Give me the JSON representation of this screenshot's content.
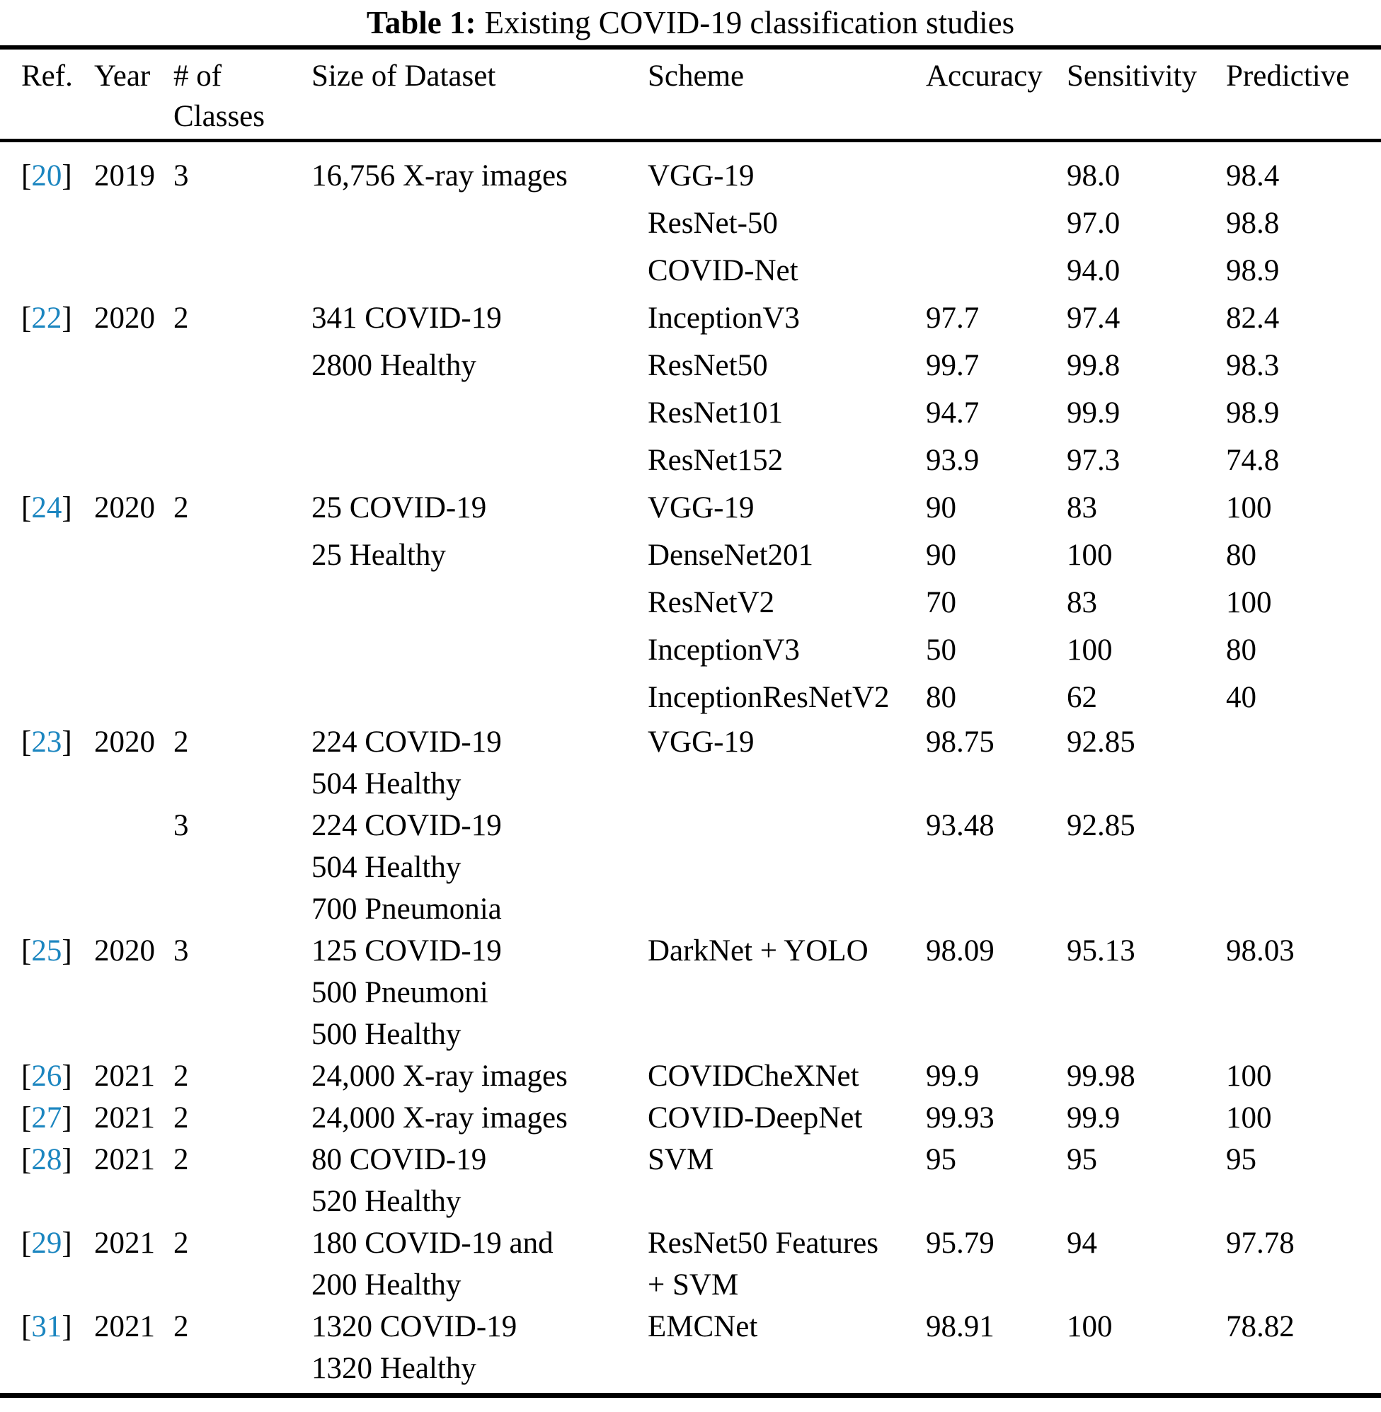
{
  "title": {
    "label": "Table 1:",
    "text": "Existing COVID-19 classification studies"
  },
  "link_color": "#1c86c0",
  "ref_brackets": {
    "open": "[",
    "close": "]"
  },
  "header": {
    "ref": "Ref.",
    "year": "Year",
    "classes_line1": "# of",
    "classes_line2": "Classes",
    "dataset": "Size of Dataset",
    "scheme": "Scheme",
    "accuracy": "Accuracy",
    "sensitivity": "Sensitivity",
    "predictive": "Predictive"
  },
  "lines": [
    {
      "ref": "20",
      "year": "2019",
      "classes": "3",
      "dataset": "16,756 X-ray images",
      "scheme": "VGG-19",
      "accuracy": "",
      "sensitivity": "98.0",
      "predictive": "98.4"
    },
    {
      "ref": "",
      "year": "",
      "classes": "",
      "dataset": "",
      "scheme": "ResNet-50",
      "accuracy": "",
      "sensitivity": "97.0",
      "predictive": "98.8"
    },
    {
      "ref": "",
      "year": "",
      "classes": "",
      "dataset": "",
      "scheme": "COVID-Net",
      "accuracy": "",
      "sensitivity": "94.0",
      "predictive": "98.9"
    },
    {
      "ref": "22",
      "year": "2020",
      "classes": "2",
      "dataset": "341 COVID-19",
      "scheme": "InceptionV3",
      "accuracy": "97.7",
      "sensitivity": "97.4",
      "predictive": "82.4"
    },
    {
      "ref": "",
      "year": "",
      "classes": "",
      "dataset": "2800 Healthy",
      "scheme": "ResNet50",
      "accuracy": "99.7",
      "sensitivity": "99.8",
      "predictive": "98.3"
    },
    {
      "ref": "",
      "year": "",
      "classes": "",
      "dataset": "",
      "scheme": "ResNet101",
      "accuracy": "94.7",
      "sensitivity": "99.9",
      "predictive": "98.9"
    },
    {
      "ref": "",
      "year": "",
      "classes": "",
      "dataset": "",
      "scheme": "ResNet152",
      "accuracy": "93.9",
      "sensitivity": "97.3",
      "predictive": "74.8"
    },
    {
      "ref": "24",
      "year": "2020",
      "classes": "2",
      "dataset": "25 COVID-19",
      "scheme": "VGG-19",
      "accuracy": "90",
      "sensitivity": "83",
      "predictive": "100"
    },
    {
      "ref": "",
      "year": "",
      "classes": "",
      "dataset": "25 Healthy",
      "scheme": "DenseNet201",
      "accuracy": "90",
      "sensitivity": "100",
      "predictive": "80"
    },
    {
      "ref": "",
      "year": "",
      "classes": "",
      "dataset": "",
      "scheme": "ResNetV2",
      "accuracy": "70",
      "sensitivity": "83",
      "predictive": "100"
    },
    {
      "ref": "",
      "year": "",
      "classes": "",
      "dataset": "",
      "scheme": "InceptionV3",
      "accuracy": "50",
      "sensitivity": "100",
      "predictive": "80"
    },
    {
      "ref": "",
      "year": "",
      "classes": "",
      "dataset": "",
      "scheme": "InceptionResNetV2",
      "accuracy": "80",
      "sensitivity": "62",
      "predictive": "40"
    },
    {
      "ref": "23",
      "year": "2020",
      "classes": "2",
      "dataset": "224 COVID-19",
      "scheme": "VGG-19",
      "accuracy": "98.75",
      "sensitivity": "92.85",
      "predictive": ""
    },
    {
      "ref": "",
      "year": "",
      "classes": "",
      "dataset": "504 Healthy",
      "scheme": "",
      "accuracy": "",
      "sensitivity": "",
      "predictive": ""
    },
    {
      "ref": "",
      "year": "",
      "classes": "3",
      "dataset": "224 COVID-19",
      "scheme": "",
      "accuracy": "93.48",
      "sensitivity": "92.85",
      "predictive": ""
    },
    {
      "ref": "",
      "year": "",
      "classes": "",
      "dataset": "504 Healthy",
      "scheme": "",
      "accuracy": "",
      "sensitivity": "",
      "predictive": ""
    },
    {
      "ref": "",
      "year": "",
      "classes": "",
      "dataset": "700 Pneumonia",
      "scheme": "",
      "accuracy": "",
      "sensitivity": "",
      "predictive": ""
    },
    {
      "ref": "25",
      "year": "2020",
      "classes": "3",
      "dataset": "125 COVID-19",
      "scheme": "DarkNet + YOLO",
      "accuracy": "98.09",
      "sensitivity": "95.13",
      "predictive": "98.03"
    },
    {
      "ref": "",
      "year": "",
      "classes": "",
      "dataset": "500 Pneumoni",
      "scheme": "",
      "accuracy": "",
      "sensitivity": "",
      "predictive": ""
    },
    {
      "ref": "",
      "year": "",
      "classes": "",
      "dataset": "500 Healthy",
      "scheme": "",
      "accuracy": "",
      "sensitivity": "",
      "predictive": ""
    },
    {
      "ref": "26",
      "year": "2021",
      "classes": "2",
      "dataset": "24,000 X-ray images",
      "scheme": "COVIDCheXNet",
      "accuracy": "99.9",
      "sensitivity": "99.98",
      "predictive": "100"
    },
    {
      "ref": "27",
      "year": "2021",
      "classes": "2",
      "dataset": "24,000 X-ray images",
      "scheme": "COVID-DeepNet",
      "accuracy": "99.93",
      "sensitivity": "99.9",
      "predictive": "100"
    },
    {
      "ref": "28",
      "year": "2021",
      "classes": "2",
      "dataset": "80 COVID-19",
      "scheme": "SVM",
      "accuracy": "95",
      "sensitivity": "95",
      "predictive": "95"
    },
    {
      "ref": "",
      "year": "",
      "classes": "",
      "dataset": "520 Healthy",
      "scheme": "",
      "accuracy": "",
      "sensitivity": "",
      "predictive": ""
    },
    {
      "ref": "29",
      "year": "2021",
      "classes": "2",
      "dataset": "180 COVID-19 and",
      "scheme": "ResNet50 Features",
      "accuracy": "95.79",
      "sensitivity": "94",
      "predictive": "97.78"
    },
    {
      "ref": "",
      "year": "",
      "classes": "",
      "dataset": "200 Healthy",
      "scheme": "+ SVM",
      "accuracy": "",
      "sensitivity": "",
      "predictive": ""
    },
    {
      "ref": "31",
      "year": "2021",
      "classes": "2",
      "dataset": "1320 COVID-19",
      "scheme": "EMCNet",
      "accuracy": "98.91",
      "sensitivity": "100",
      "predictive": "78.82"
    },
    {
      "ref": "",
      "year": "",
      "classes": "",
      "dataset": "1320 Healthy",
      "scheme": "",
      "accuracy": "",
      "sensitivity": "",
      "predictive": ""
    }
  ]
}
